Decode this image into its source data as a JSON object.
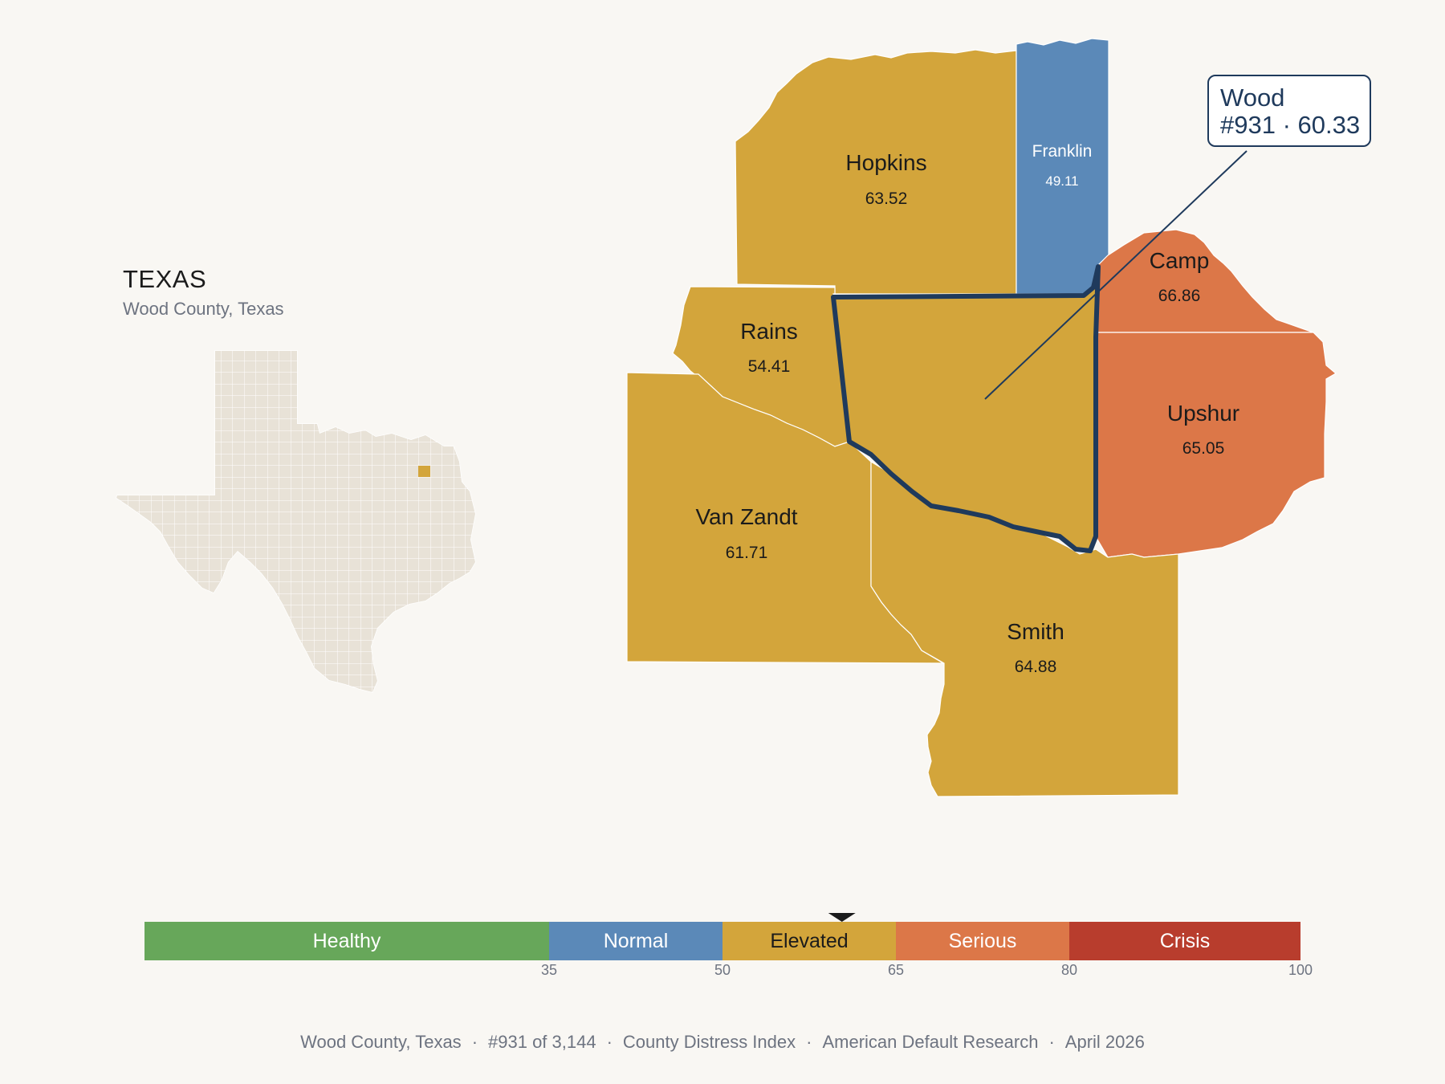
{
  "state": {
    "title": "TEXAS",
    "subtitle": "Wood County, Texas"
  },
  "highlight_color": "#d3a53b",
  "counties": [
    {
      "name": "Hopkins",
      "value": "63.52",
      "band": "Elevated",
      "color": "#d3a53b"
    },
    {
      "name": "Franklin",
      "value": "49.11",
      "band": "Normal",
      "color": "#5b89b8"
    },
    {
      "name": "Camp",
      "value": "66.86",
      "band": "Serious",
      "color": "#dc7748"
    },
    {
      "name": "Rains",
      "value": "54.41",
      "band": "Elevated",
      "color": "#d3a53b"
    },
    {
      "name": "Upshur",
      "value": "65.05",
      "band": "Serious",
      "color": "#dc7748"
    },
    {
      "name": "Van Zandt",
      "value": "61.71",
      "band": "Elevated",
      "color": "#d3a53b"
    },
    {
      "name": "Smith",
      "value": "64.88",
      "band": "Elevated",
      "color": "#d3a53b"
    },
    {
      "name": "Wood",
      "value": "60.33",
      "band": "Elevated",
      "color": "#d3a53b"
    }
  ],
  "callout": {
    "line1": "Wood",
    "line2": "#931 · 60.33"
  },
  "legend": {
    "min": 0,
    "max": 100,
    "marker_value": 60.33,
    "bands": [
      {
        "label": "Healthy",
        "from": 0,
        "to": 35,
        "color": "#67a75a",
        "text_color": "#ffffff"
      },
      {
        "label": "Normal",
        "from": 35,
        "to": 50,
        "color": "#5b89b8",
        "text_color": "#ffffff"
      },
      {
        "label": "Elevated",
        "from": 50,
        "to": 65,
        "color": "#d3a53b",
        "text_color": "#1b1b1b"
      },
      {
        "label": "Serious",
        "from": 65,
        "to": 80,
        "color": "#dc7748",
        "text_color": "#ffffff"
      },
      {
        "label": "Crisis",
        "from": 80,
        "to": 100,
        "color": "#b83d2d",
        "text_color": "#ffffff"
      }
    ],
    "ticks": [
      "35",
      "50",
      "65",
      "80",
      "100"
    ]
  },
  "footer": {
    "county": "Wood County, Texas",
    "rank": "#931 of 3,144",
    "index": "County Distress Index",
    "org": "American Default Research",
    "date": "April 2026",
    "separator": "·"
  }
}
